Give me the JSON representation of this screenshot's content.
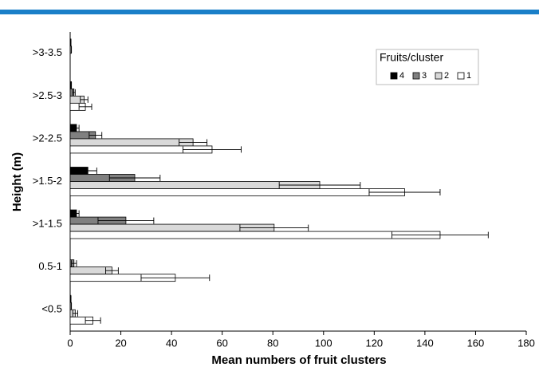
{
  "chart_data": {
    "type": "hbar",
    "xlabel": "Mean numbers of fruit clusters",
    "ylabel": "Height (m)",
    "legend_title": "Fruits/cluster",
    "legend_position": "upper right",
    "categories": [
      "<0.5",
      "0.5-1",
      ">1-1.5",
      ">1.5-2",
      ">2-2.5",
      ">2.5-3",
      ">3-3.5"
    ],
    "series": [
      {
        "name": "4",
        "color": "#000000",
        "values": [
          0.3,
          0,
          2.5,
          7,
          2.5,
          0.5,
          0.3
        ],
        "errors": [
          0,
          0,
          1,
          3.5,
          1,
          0,
          0
        ]
      },
      {
        "name": "3",
        "color": "#808080",
        "values": [
          0.5,
          1.5,
          22,
          25.5,
          10,
          1.5,
          0.5
        ],
        "errors": [
          0,
          1,
          11,
          10,
          2.5,
          0.5,
          0
        ]
      },
      {
        "name": "2",
        "color": "#d9d9d9",
        "values": [
          2,
          16.5,
          80.5,
          98.5,
          48.5,
          5.5,
          0
        ],
        "errors": [
          1,
          2.5,
          13.5,
          16,
          5.5,
          1.5,
          0
        ]
      },
      {
        "name": "1",
        "color": "#ffffff",
        "values": [
          9,
          41.5,
          146,
          132,
          56,
          6,
          0
        ],
        "errors": [
          3,
          13.5,
          19,
          14,
          11.5,
          2.5,
          0
        ]
      }
    ],
    "xlim": [
      0,
      180
    ],
    "xticks": [
      0,
      20,
      40,
      60,
      80,
      100,
      120,
      140,
      160,
      180
    ]
  }
}
